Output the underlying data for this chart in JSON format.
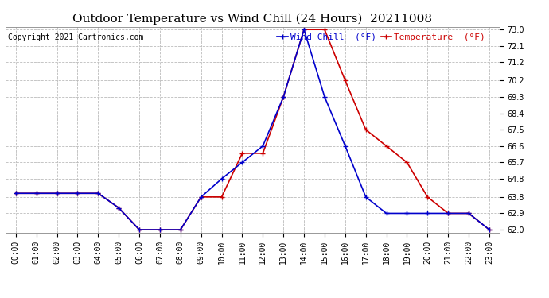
{
  "title": "Outdoor Temperature vs Wind Chill (24 Hours)  20211008",
  "copyright": "Copyright 2021 Cartronics.com",
  "legend_wind": "Wind Chill  (°F)",
  "legend_temp": "Temperature  (°F)",
  "hours": [
    0,
    1,
    2,
    3,
    4,
    5,
    6,
    7,
    8,
    9,
    10,
    11,
    12,
    13,
    14,
    15,
    16,
    17,
    18,
    19,
    20,
    21,
    22,
    23
  ],
  "temperature": [
    64.0,
    64.0,
    64.0,
    64.0,
    64.0,
    63.2,
    62.0,
    62.0,
    62.0,
    63.8,
    63.8,
    66.2,
    66.2,
    69.3,
    73.0,
    73.0,
    70.2,
    67.5,
    66.6,
    65.7,
    63.8,
    62.9,
    62.9,
    62.0
  ],
  "wind_chill": [
    64.0,
    64.0,
    64.0,
    64.0,
    64.0,
    63.2,
    62.0,
    62.0,
    62.0,
    63.8,
    64.8,
    65.7,
    66.6,
    69.3,
    73.0,
    69.3,
    66.6,
    63.8,
    62.9,
    62.9,
    62.9,
    62.9,
    62.9,
    62.0
  ],
  "temp_color": "#cc0000",
  "wind_color": "#0000cc",
  "marker": "+",
  "markersize": 5,
  "linewidth": 1.2,
  "ylim_min": 62.0,
  "ylim_max": 73.0,
  "ytick_vals": [
    62.0,
    62.9,
    63.8,
    64.8,
    65.7,
    66.6,
    67.5,
    68.4,
    69.3,
    70.2,
    71.2,
    72.1,
    73.0
  ],
  "ytick_labels": [
    "62.0",
    "62.9",
    "63.8",
    "64.8",
    "65.7",
    "66.6",
    "67.5",
    "68.4",
    "69.3",
    "70.2",
    "71.2",
    "72.1",
    "73.0"
  ],
  "background_color": "#ffffff",
  "grid_color": "#bbbbbb",
  "title_fontsize": 11,
  "tick_fontsize": 7,
  "copyright_fontsize": 7,
  "legend_fontsize": 8
}
